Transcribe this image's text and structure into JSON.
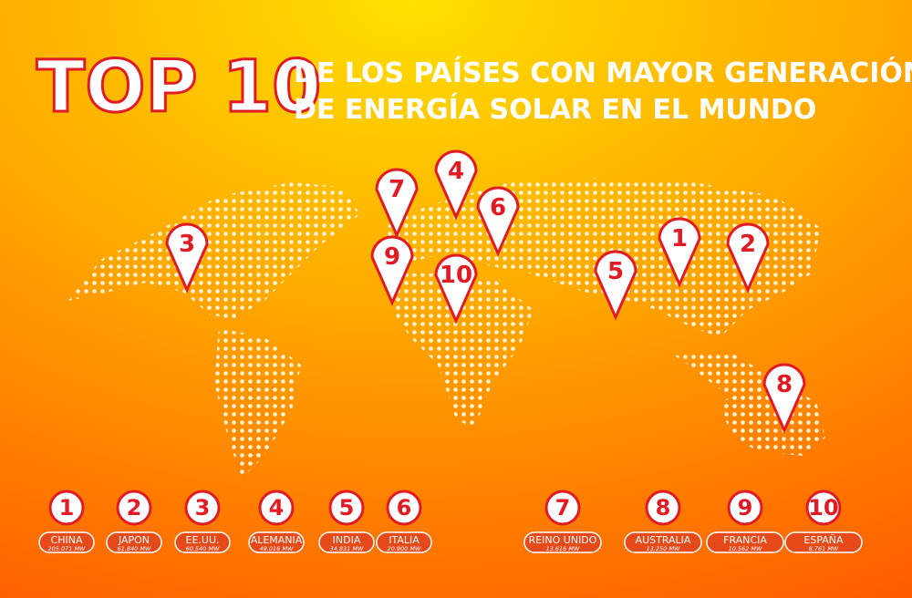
{
  "header": {
    "title": "TOP 10",
    "subtitle_line1": "DE LOS PAÍSES CON MAYOR GENERACIÓN",
    "subtitle_line2": "DE ENERGÍA SOLAR EN EL MUNDO"
  },
  "ranking": [
    {
      "rank": "1",
      "country": "CHINA",
      "value": "205.071 MW"
    },
    {
      "rank": "2",
      "country": "JAPON",
      "value": "61.840 MW"
    },
    {
      "rank": "3",
      "country": "EE.UU.",
      "value": "60.540 MW"
    },
    {
      "rank": "4",
      "country": "ALEMANIA",
      "value": "49.016 MW"
    },
    {
      "rank": "5",
      "country": "INDIA",
      "value": "34.831 MW"
    },
    {
      "rank": "6",
      "country": "ITALIA",
      "value": "20.900 MW"
    },
    {
      "rank": "7",
      "country": "REINO UNIDO",
      "value": "13.616 MW"
    },
    {
      "rank": "8",
      "country": "AUSTRALIA",
      "value": "13.250 MW"
    },
    {
      "rank": "9",
      "country": "FRANCIA",
      "value": "10.562 MW"
    },
    {
      "rank": "10",
      "country": "ESPAÑA",
      "value": "8.761 MW"
    }
  ]
}
